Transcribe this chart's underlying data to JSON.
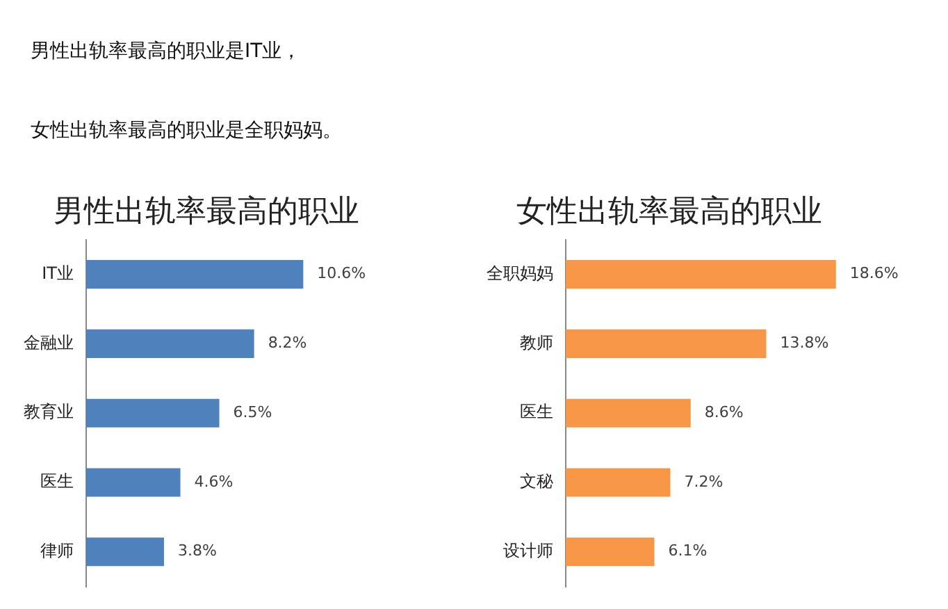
{
  "chart_data": [
    {
      "type": "bar",
      "orientation": "horizontal",
      "title": "男性出轨率最高的职业",
      "annotations": [
        "男性出轨率最高的职业是IT业，"
      ],
      "categories": [
        "IT业",
        "金融业",
        "教育业",
        "医生",
        "律师"
      ],
      "values": [
        10.6,
        8.2,
        6.5,
        4.6,
        3.8
      ],
      "color": "#4f81bd",
      "value_labels": [
        "10.6%",
        "8.2%",
        "6.5%",
        "4.6%",
        "3.8%"
      ],
      "tick_labels": "y",
      "grid": false,
      "legend": false
    },
    {
      "type": "bar",
      "orientation": "horizontal",
      "title": "女性出轨率最高的职业",
      "annotations": [
        "女性出轨率最高的职业是全职妈妈。"
      ],
      "categories": [
        "全职妈妈",
        "教师",
        "医生",
        "文秘",
        "设计师"
      ],
      "values": [
        18.6,
        13.8,
        8.6,
        7.2,
        6.1
      ],
      "color": "#f79646",
      "value_labels": [
        "18.6%",
        "13.8%",
        "8.6%",
        "7.2%",
        "6.1%"
      ],
      "tick_labels": "y",
      "grid": false,
      "legend": false
    }
  ]
}
